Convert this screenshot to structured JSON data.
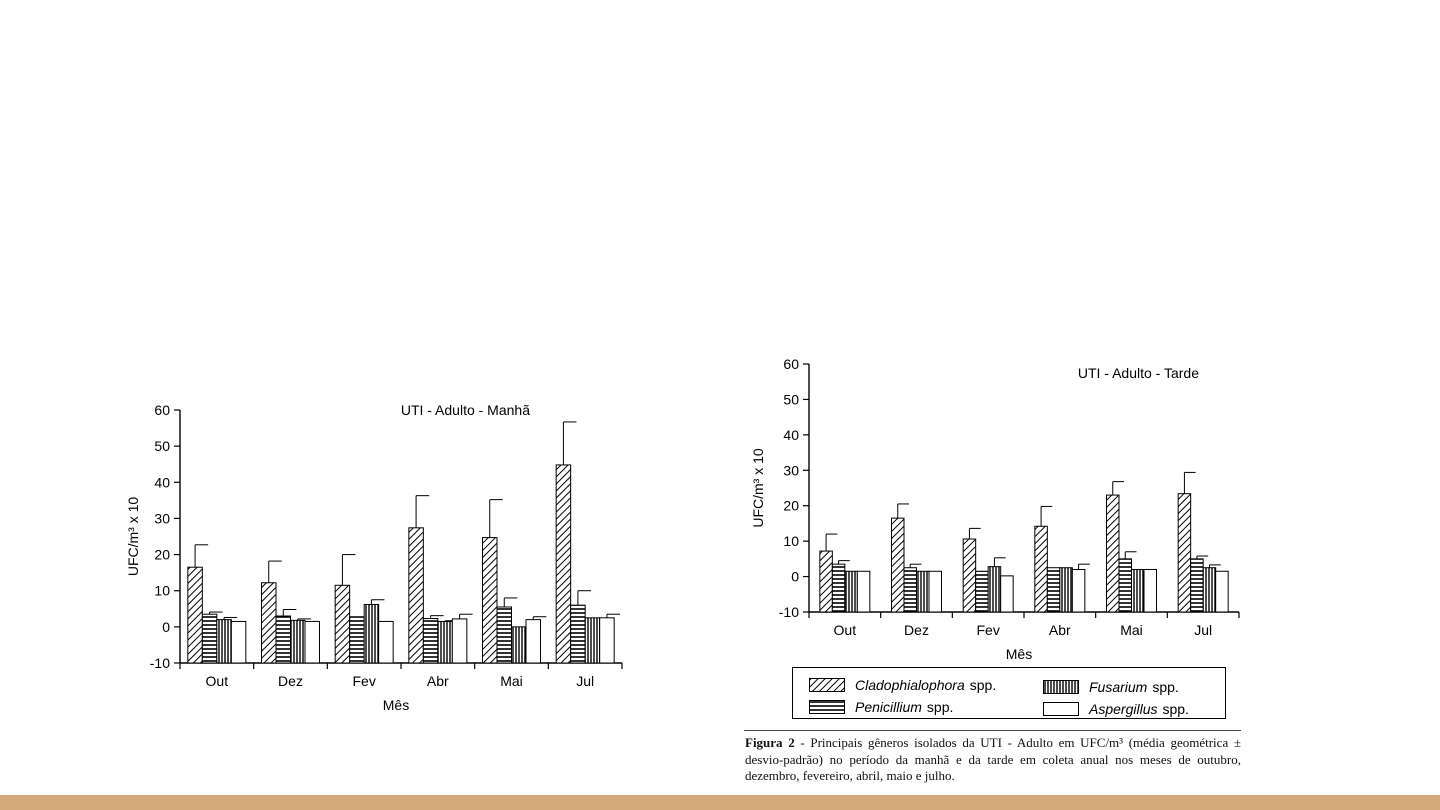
{
  "legend": {
    "items": [
      {
        "name": "Cladophialophora",
        "suffix": "spp.",
        "pattern": "diag"
      },
      {
        "name": "Fusarium",
        "suffix": "spp.",
        "pattern": "vert"
      },
      {
        "name": "Penicillium",
        "suffix": "spp.",
        "pattern": "horiz"
      },
      {
        "name": "Aspergillus",
        "suffix": "spp.",
        "pattern": "none"
      }
    ]
  },
  "caption": {
    "label": "Figura 2",
    "text": " - Principais gêneros isolados da UTI - Adulto em UFC/m³ (média geométrica ± desvio-padrão) no período da manhã e da tarde em coleta anual nos meses de outubro, dezembro, fevereiro, abril, maio e julho."
  },
  "colors": {
    "bottom_bar": "#d3a97a",
    "ink": "#000000"
  },
  "chart_data": [
    {
      "type": "bar",
      "title": "UTI - Adulto - Manhã",
      "xlabel": "Mês",
      "ylabel": "UFC/m³ x 10",
      "ylim": [
        -10,
        60
      ],
      "yticks": [
        -10,
        0,
        10,
        20,
        30,
        40,
        50,
        60
      ],
      "categories": [
        "Out",
        "Dez",
        "Fev",
        "Abr",
        "Mai",
        "Jul"
      ],
      "series": [
        {
          "name": "Cladophialophora spp.",
          "pattern": "diag",
          "values": [
            16.5,
            12.2,
            11.5,
            27.4,
            24.7,
            44.8
          ],
          "errors": [
            6.2,
            6.0,
            8.5,
            8.9,
            10.5,
            11.9
          ]
        },
        {
          "name": "Penicillium spp.",
          "pattern": "horiz",
          "values": [
            3.5,
            3.0,
            2.8,
            2.3,
            5.5,
            6.0
          ],
          "errors": [
            0.6,
            1.8,
            0,
            0.8,
            2.5,
            4.0
          ]
        },
        {
          "name": "Fusarium spp.",
          "pattern": "vert",
          "values": [
            2.0,
            1.8,
            6.2,
            1.5,
            0.0,
            2.5
          ],
          "errors": [
            0.6,
            0.4,
            1.3,
            0.2,
            0,
            0
          ]
        },
        {
          "name": "Aspergillus spp.",
          "pattern": "none",
          "values": [
            1.5,
            1.5,
            1.5,
            2.2,
            2.0,
            2.5
          ],
          "errors": [
            0,
            0,
            0,
            1.3,
            0.8,
            1.0
          ]
        }
      ]
    },
    {
      "type": "bar",
      "title": "UTI - Adulto - Tarde",
      "xlabel": "Mês",
      "ylabel": "UFC/m³ x 10",
      "ylim": [
        -10,
        60
      ],
      "yticks": [
        -10,
        0,
        10,
        20,
        30,
        40,
        50,
        60
      ],
      "categories": [
        "Out",
        "Dez",
        "Fev",
        "Abr",
        "Mai",
        "Jul"
      ],
      "series": [
        {
          "name": "Cladophialophora spp.",
          "pattern": "diag",
          "values": [
            7.2,
            16.5,
            10.6,
            14.2,
            23.0,
            23.4
          ],
          "errors": [
            4.8,
            4.0,
            3.0,
            5.6,
            3.8,
            6.0
          ]
        },
        {
          "name": "Penicillium spp.",
          "pattern": "horiz",
          "values": [
            3.5,
            2.5,
            1.5,
            2.5,
            5.0,
            5.0
          ],
          "errors": [
            1.0,
            1.0,
            0,
            0,
            2.0,
            0.8
          ]
        },
        {
          "name": "Fusarium spp.",
          "pattern": "vert",
          "values": [
            1.5,
            1.5,
            2.8,
            2.5,
            2.0,
            2.5
          ],
          "errors": [
            0,
            0,
            2.5,
            0,
            0,
            0.8
          ]
        },
        {
          "name": "Aspergillus spp.",
          "pattern": "none",
          "values": [
            1.5,
            1.5,
            0.2,
            2.0,
            2.0,
            1.5
          ],
          "errors": [
            0,
            0,
            0,
            1.5,
            0,
            0
          ]
        }
      ]
    }
  ]
}
